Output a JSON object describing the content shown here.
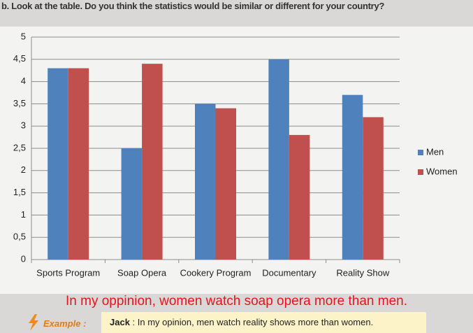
{
  "header": {
    "instruction": "b. Look at the table. Do you think the statistics would be similar or different for your country?"
  },
  "chart_data": {
    "type": "bar",
    "categories": [
      "Sports Program",
      "Soap Opera",
      "Cookery Program",
      "Documentary",
      "Reality Show"
    ],
    "series": [
      {
        "name": "Men",
        "color": "#4f81bd",
        "values": [
          4.3,
          2.5,
          3.5,
          4.5,
          3.7
        ]
      },
      {
        "name": "Women",
        "color": "#c0504d",
        "values": [
          4.3,
          4.4,
          3.4,
          2.8,
          3.2
        ]
      }
    ],
    "ylim": [
      0,
      5
    ],
    "yticks": [
      0,
      {
        "value": 0.5,
        "label": "0,5"
      },
      1,
      {
        "value": 1.5,
        "label": "1,5"
      },
      2,
      {
        "value": 2.5,
        "label": "2,5"
      },
      3,
      {
        "value": 3.5,
        "label": "3,5"
      },
      4,
      {
        "value": 4.5,
        "label": "4,5"
      },
      5
    ],
    "grid": true,
    "legend": "right"
  },
  "annotation": "In my oppinion, women watch soap opera more than men.",
  "example": {
    "label": "Example :",
    "speaker": "Jack",
    "text": ": In my opinion, men watch reality shows more than women."
  }
}
